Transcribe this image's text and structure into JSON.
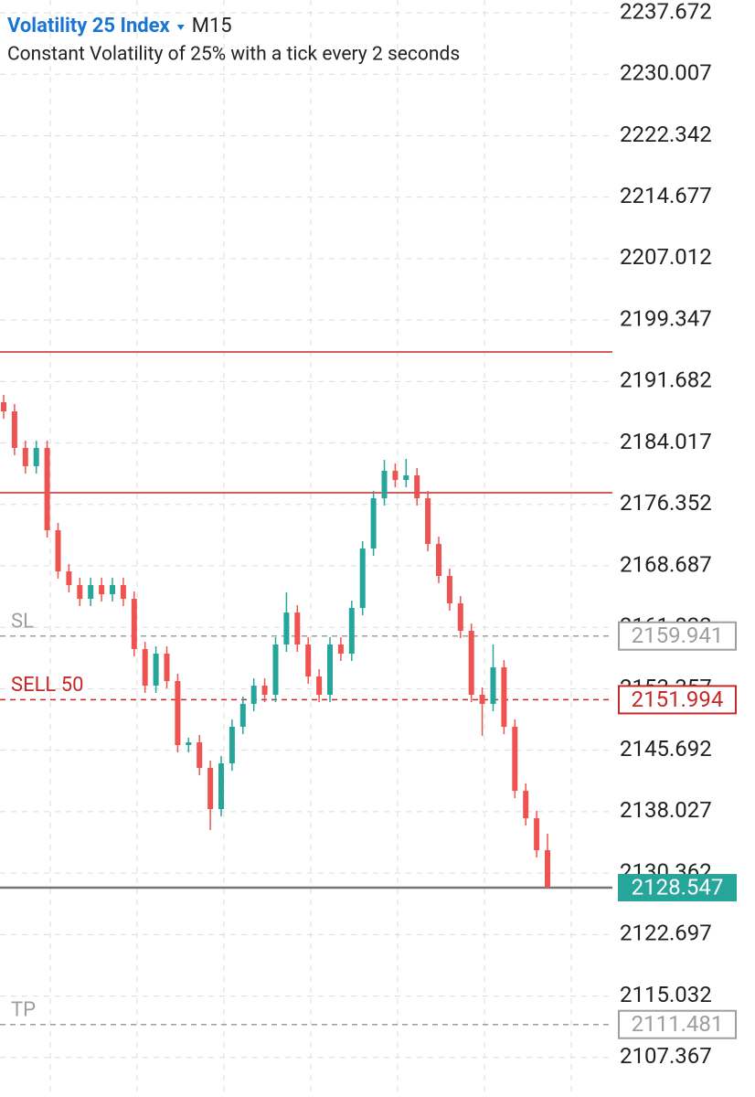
{
  "chart_data": {
    "type": "candlestick",
    "title": "Volatility 25 Index",
    "timeframe": "M15",
    "subtitle": "Constant Volatility of 25% with a tick every 2 seconds",
    "ylim": [
      2102.44,
      2239.27
    ],
    "yticks": [
      2237.672,
      2230.007,
      2222.342,
      2214.677,
      2207.012,
      2199.347,
      2191.682,
      2184.017,
      2176.352,
      2168.687,
      2161.022,
      2153.357,
      2145.692,
      2138.027,
      2130.362,
      2122.697,
      2115.032,
      2107.367
    ],
    "grid": true,
    "up_color": "#26a69a",
    "down_color": "#ef5350",
    "open": [
      2189.1,
      2187.96,
      2183.4,
      2181.12,
      2183.4,
      2173.13,
      2168.0,
      2166.29,
      2164.58,
      2166.29,
      2165.15,
      2166.29,
      2164.58,
      2158.31,
      2153.75,
      2157.74,
      2154.32,
      2146.34,
      2146.68,
      2143.49,
      2138.35,
      2144.06,
      2148.62,
      2151.47,
      2153.75,
      2152.61,
      2158.88,
      2162.87,
      2158.88,
      2154.89,
      2152.61,
      2158.88,
      2157.74,
      2163.44,
      2170.85,
      2177.12,
      2180.55,
      2179.4,
      2179.97,
      2177.12,
      2171.42,
      2167.43,
      2164.01,
      2160.59,
      2152.61,
      2151.47,
      2156.03,
      2148.62,
      2140.63,
      2137.21,
      2133.22
    ],
    "high": [
      2190.01,
      2188.87,
      2184.31,
      2184.31,
      2184.31,
      2174.05,
      2168.91,
      2167.2,
      2167.2,
      2167.2,
      2167.2,
      2167.2,
      2165.49,
      2159.22,
      2158.65,
      2158.65,
      2155.23,
      2147.25,
      2147.59,
      2144.4,
      2144.97,
      2149.53,
      2152.38,
      2154.66,
      2154.66,
      2159.79,
      2165.38,
      2163.78,
      2159.79,
      2155.8,
      2159.79,
      2159.79,
      2164.35,
      2171.76,
      2178.04,
      2181.91,
      2181.46,
      2182.03,
      2180.89,
      2178.04,
      2172.33,
      2168.34,
      2164.92,
      2161.5,
      2153.52,
      2158.88,
      2156.94,
      2149.53,
      2141.55,
      2138.13,
      2135.28
    ],
    "low": [
      2187.04,
      2182.48,
      2180.2,
      2180.2,
      2172.22,
      2167.09,
      2165.38,
      2163.67,
      2163.67,
      2164.24,
      2164.24,
      2163.67,
      2157.4,
      2152.84,
      2152.84,
      2153.41,
      2145.42,
      2145.42,
      2142.57,
      2135.73,
      2137.44,
      2143.14,
      2147.7,
      2150.56,
      2151.7,
      2151.7,
      2157.97,
      2157.97,
      2153.98,
      2151.7,
      2151.7,
      2156.83,
      2156.83,
      2162.53,
      2169.94,
      2176.21,
      2178.49,
      2178.49,
      2176.21,
      2170.51,
      2166.52,
      2163.1,
      2159.68,
      2151.7,
      2147.48,
      2150.56,
      2147.7,
      2139.72,
      2136.3,
      2132.31,
      2128.547
    ],
    "close": [
      2187.96,
      2183.4,
      2181.12,
      2183.4,
      2173.13,
      2168.0,
      2166.29,
      2164.58,
      2166.29,
      2165.15,
      2166.29,
      2164.58,
      2158.31,
      2153.75,
      2157.74,
      2154.32,
      2146.34,
      2146.68,
      2143.49,
      2138.35,
      2144.06,
      2148.62,
      2151.47,
      2153.75,
      2152.61,
      2158.88,
      2162.87,
      2158.88,
      2154.89,
      2152.61,
      2158.88,
      2157.74,
      2163.44,
      2170.85,
      2177.12,
      2180.55,
      2179.4,
      2179.97,
      2177.12,
      2171.42,
      2167.43,
      2164.01,
      2160.59,
      2152.61,
      2151.47,
      2156.03,
      2148.62,
      2140.63,
      2137.21,
      2133.22,
      2128.547
    ],
    "levels": {
      "values": [
        2195.37,
        2177.81
      ],
      "color": "#c62828"
    },
    "orders": [
      {
        "label": "SL",
        "price": 2159.941,
        "color": "#9e9e9e"
      },
      {
        "label": "SELL 50",
        "price": 2151.994,
        "color": "#c62828"
      },
      {
        "label": "TP",
        "price": 2111.481,
        "color": "#9e9e9e"
      }
    ],
    "current_price": {
      "value": 2128.547,
      "color": "#26a69a",
      "line_color": "#757575"
    }
  }
}
